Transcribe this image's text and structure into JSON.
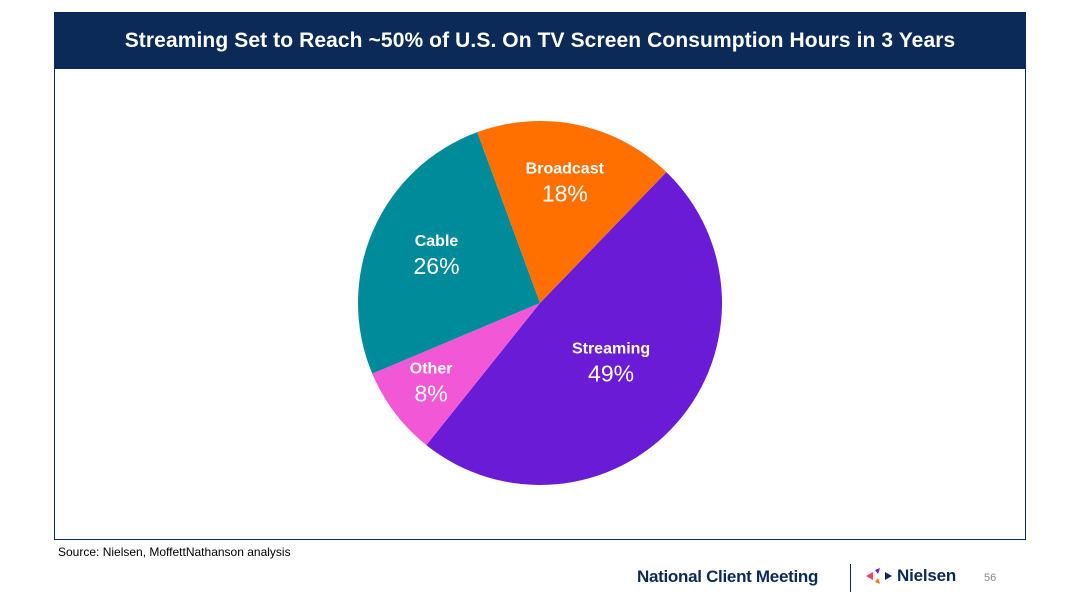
{
  "slide": {
    "title": "Streaming Set to Reach ~50% of U.S. On TV Screen Consumption Hours in 3 Years",
    "source": "Source: Nielsen, MoffettNathanson analysis",
    "footer": {
      "meeting": "National Client Meeting",
      "brand": "Nielsen",
      "page_number": "56"
    },
    "colors": {
      "title_bar": "#0b2a57",
      "navy_text": "#0b2a57"
    }
  },
  "chart_data": {
    "type": "pie",
    "title": "",
    "slices": [
      {
        "label": "Streaming",
        "value": 49,
        "display": "49%",
        "color": "#6a1bd6"
      },
      {
        "label": "Other",
        "value": 8,
        "display": "8%",
        "color": "#f257d6"
      },
      {
        "label": "Cable",
        "value": 26,
        "display": "26%",
        "color": "#008b9a"
      },
      {
        "label": "Broadcast",
        "value": 18,
        "display": "18%",
        "color": "#ff7000"
      }
    ],
    "start_angle_deg": -46,
    "direction": "clockwise",
    "legend": "none",
    "labels_inside": true
  }
}
